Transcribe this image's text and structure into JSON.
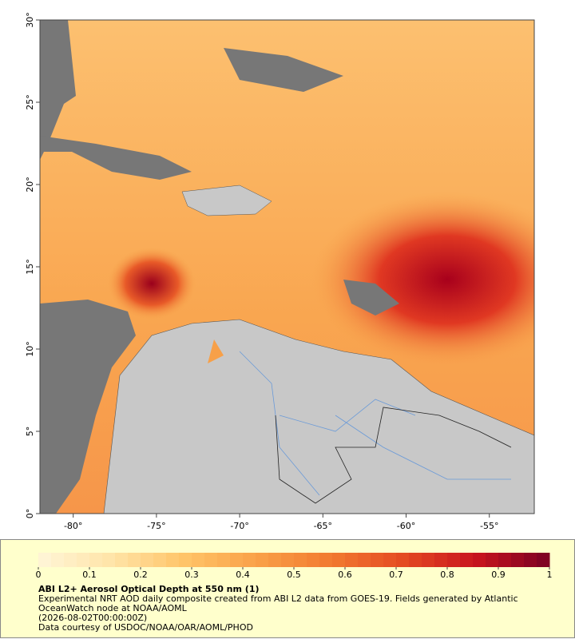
{
  "map": {
    "xlim": [
      -82,
      -52.3
    ],
    "ylim": [
      0,
      30
    ],
    "xticks": [
      {
        "value": -80,
        "label": "-80°"
      },
      {
        "value": -75,
        "label": "-75°"
      },
      {
        "value": -70,
        "label": "-70°"
      },
      {
        "value": -65,
        "label": "-65°"
      },
      {
        "value": -60,
        "label": "-60°"
      },
      {
        "value": -55,
        "label": "-55°"
      }
    ],
    "yticks": [
      {
        "value": 0,
        "label": "0°"
      },
      {
        "value": 5,
        "label": "5°"
      },
      {
        "value": 10,
        "label": "10°"
      },
      {
        "value": 15,
        "label": "15°"
      },
      {
        "value": 20,
        "label": "20°"
      },
      {
        "value": 25,
        "label": "25°"
      },
      {
        "value": 30,
        "label": "30°"
      }
    ]
  },
  "colorbar": {
    "lim": [
      0,
      1
    ],
    "ticks": [
      0,
      0.1,
      0.2,
      0.3,
      0.4,
      0.5,
      0.6,
      0.7,
      0.8,
      0.9,
      1
    ],
    "colormap": [
      "#fff6d8",
      "#ffe4a8",
      "#ffc468",
      "#f9a048",
      "#f27a30",
      "#e44a22",
      "#c8141e",
      "#7a0024"
    ]
  },
  "caption": {
    "title": "ABI L2+ Aerosol Optical Depth at 550 nm (1)",
    "description": "Experimental NRT AOD daily composite created from ABI L2 data from GOES-19. Fields generated by Atlantic OceanWatch node at NOAA/AOML",
    "timestamp": "(2026-08-02T00:00:00Z)",
    "credit": "Data courtesy of USDOC/NOAA/OAR/AOML/PHOD"
  }
}
